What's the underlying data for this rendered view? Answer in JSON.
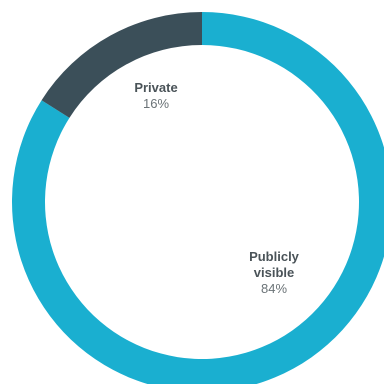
{
  "chart_data": {
    "type": "pie",
    "donut": true,
    "slices": [
      {
        "name": "Publicly visible",
        "name_lines": [
          "Publicly",
          "visible"
        ],
        "value": 84,
        "value_label": "84%",
        "color": "#1aafd0"
      },
      {
        "name": "Private",
        "name_lines": [
          "Private"
        ],
        "value": 16,
        "value_label": "16%",
        "color": "#3b4f59"
      }
    ],
    "start_angle_deg": 0,
    "direction": "clockwise",
    "legend": "none"
  }
}
